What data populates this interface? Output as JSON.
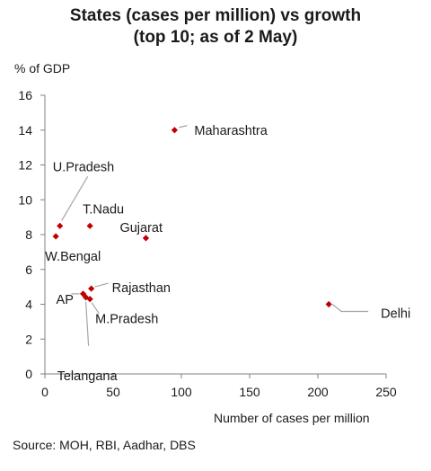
{
  "chart_data": {
    "type": "scatter",
    "title_line1": "States (cases per million) vs growth",
    "title_line2": "(top 10; as of 2 May)",
    "ylabel": "% of GDP",
    "xlabel": "Number of cases per million",
    "source": "Source: MOH, RBI, Aadhar, DBS",
    "xlim": [
      0,
      250
    ],
    "ylim": [
      0,
      16
    ],
    "xticks": [
      0,
      50,
      100,
      150,
      200,
      250
    ],
    "yticks": [
      0,
      2,
      4,
      6,
      8,
      10,
      12,
      14,
      16
    ],
    "grid": false,
    "marker_color": "#c00000",
    "points": [
      {
        "label": "Maharashtra",
        "x": 95,
        "y": 14.0
      },
      {
        "label": "U.Pradesh",
        "x": 11,
        "y": 8.5
      },
      {
        "label": "T.Nadu",
        "x": 33,
        "y": 8.5
      },
      {
        "label": "Gujarat",
        "x": 74,
        "y": 7.8
      },
      {
        "label": "W.Bengal",
        "x": 8,
        "y": 7.9
      },
      {
        "label": "Rajasthan",
        "x": 34,
        "y": 4.9
      },
      {
        "label": "AP",
        "x": 28,
        "y": 4.6
      },
      {
        "label": "Telangana",
        "x": 30,
        "y": 4.4
      },
      {
        "label": "M.Pradesh",
        "x": 33,
        "y": 4.3
      },
      {
        "label": "Delhi",
        "x": 208,
        "y": 4.0
      }
    ]
  }
}
